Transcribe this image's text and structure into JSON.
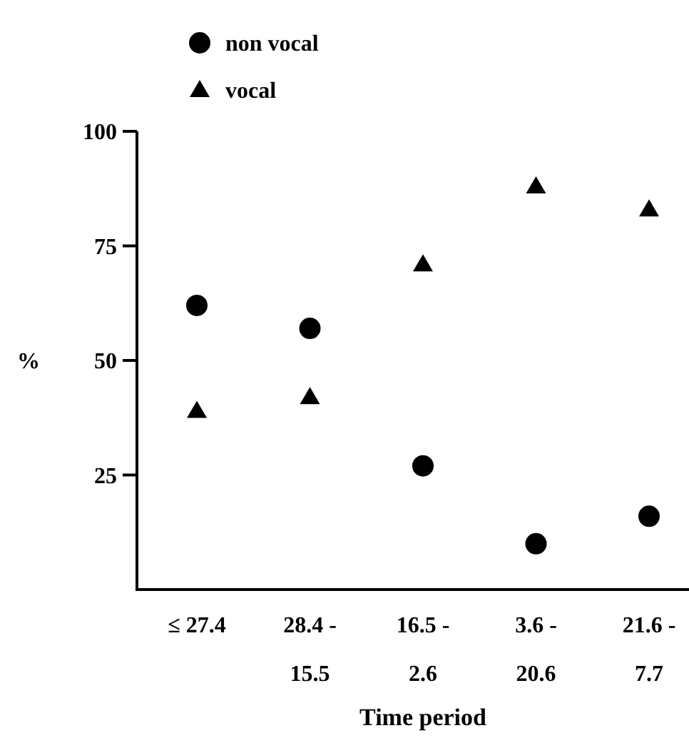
{
  "chart_data": {
    "type": "scatter",
    "xlabel": "Time period",
    "ylabel": "%",
    "categories": [
      "≤ 27.4",
      "28.4 - 15.5",
      "16.5 - 2.6",
      "3.6 - 20.6",
      "21.6 - 7.7"
    ],
    "series": [
      {
        "name": "non vocal",
        "color": "#000000",
        "marker": "circle",
        "values": [
          62,
          57,
          27,
          10,
          16
        ]
      },
      {
        "name": "vocal",
        "color": "#000000",
        "marker": "triangle",
        "values": [
          39,
          42,
          71,
          88,
          83
        ]
      }
    ],
    "ylim": [
      0,
      100
    ],
    "yticks": [
      25,
      50,
      75,
      100
    ],
    "legend": "top left"
  }
}
